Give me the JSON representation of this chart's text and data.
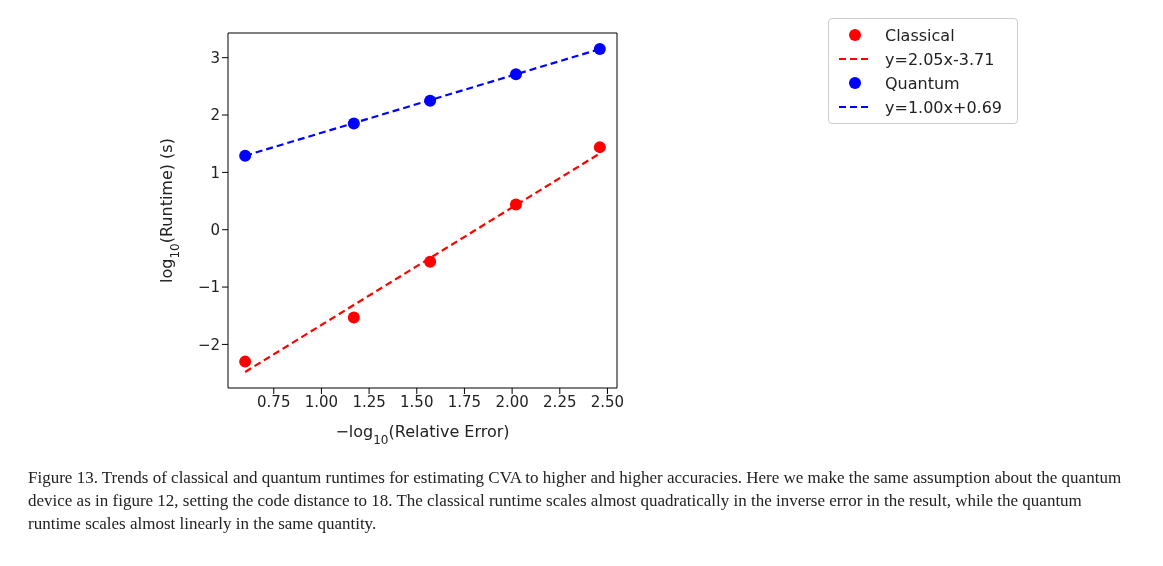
{
  "chart_data": {
    "type": "scatter",
    "xlabel": "−log$_{10}$(Relative Error)",
    "ylabel": "log$_{10}$(Runtime) (s)",
    "xlim": [
      0.51,
      2.55
    ],
    "ylim": [
      -2.76,
      3.43
    ],
    "xticks": [
      {
        "value": 0.75,
        "label": "0.75"
      },
      {
        "value": 1,
        "label": "1.00"
      },
      {
        "value": 1.25,
        "label": "1.25"
      },
      {
        "value": 1.5,
        "label": "1.50"
      },
      {
        "value": 1.75,
        "label": "1.75"
      },
      {
        "value": 2,
        "label": "2.00"
      },
      {
        "value": 2.25,
        "label": "2.25"
      },
      {
        "value": 2.5,
        "label": "2.50"
      }
    ],
    "yticks": [
      -2,
      -1,
      0,
      1,
      2,
      3
    ],
    "grid": false,
    "legend": "top right",
    "series": [
      {
        "name": "Classical",
        "marker": "circle",
        "color": "#ff0000",
        "x": [
          0.6,
          1.17,
          1.57,
          2.02,
          2.46
        ],
        "values": [
          -2.3,
          -1.53,
          -0.56,
          0.44,
          1.44
        ]
      },
      {
        "name": "y=2.05x-3.71",
        "type": "line",
        "marker": "none",
        "line_style": "dashed",
        "color": "#ff0000",
        "x": [
          0.6,
          2.46
        ],
        "values": [
          -2.48,
          1.33
        ]
      },
      {
        "name": "Quantum",
        "marker": "circle",
        "color": "#0000ff",
        "x": [
          0.6,
          1.17,
          1.57,
          2.02,
          2.46
        ],
        "values": [
          1.29,
          1.85,
          2.25,
          2.71,
          3.15
        ]
      },
      {
        "name": "y=1.00x+0.69",
        "type": "line",
        "marker": "none",
        "line_style": "dashed",
        "color": "#0000ff",
        "x": [
          0.6,
          2.46
        ],
        "values": [
          1.29,
          3.15
        ]
      }
    ],
    "annotations": [
      "Figure 13. Trends of classical and quantum runtimes for estimating CVA to higher and higher accuracies. Here we make the same assumption about the quantum device as in figure 12, setting the code distance to 18. The classical runtime scales almost quadratically in the inverse error in the result, while the quantum runtime scales almost linearly in the same quantity."
    ]
  }
}
